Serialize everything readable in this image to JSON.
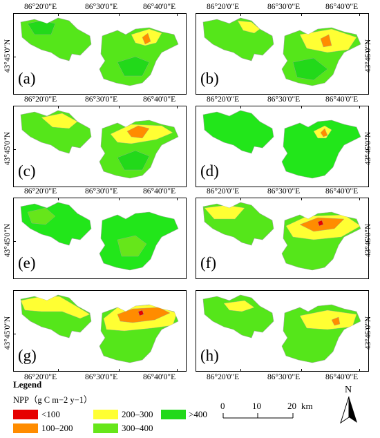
{
  "longitude_labels": [
    "86°20'0\"E",
    "86°30'0\"E",
    "86°40'0\"E"
  ],
  "latitude_label": "43°45'0\"N",
  "panels": [
    {
      "label": "(a)",
      "dominant": "#55e61a"
    },
    {
      "label": "(b)",
      "dominant": "#55e61a"
    },
    {
      "label": "(c)",
      "dominant": "#55e61a"
    },
    {
      "label": "(d)",
      "dominant": "#22e61a"
    },
    {
      "label": "(e)",
      "dominant": "#22e61a"
    },
    {
      "label": "(f)",
      "dominant": "#55e61a"
    },
    {
      "label": "(g)",
      "dominant": "#55e61a"
    },
    {
      "label": "(h)",
      "dominant": "#55e61a"
    }
  ],
  "legend": {
    "title": "Legend",
    "variable": "NPP（g C m−2 y−1）",
    "classes": [
      {
        "label": "<100",
        "color": "#e60000"
      },
      {
        "label": "100–200",
        "color": "#ff8c00"
      },
      {
        "label": "200–300",
        "color": "#ffff33"
      },
      {
        "label": "300–400",
        "color": "#66e61a"
      },
      {
        "label": ">400",
        "color": "#22d91a"
      }
    ]
  },
  "scale_bar": {
    "ticks": [
      "0",
      "10",
      "20"
    ],
    "unit": "km"
  },
  "north_arrow": {
    "letter": "N"
  }
}
